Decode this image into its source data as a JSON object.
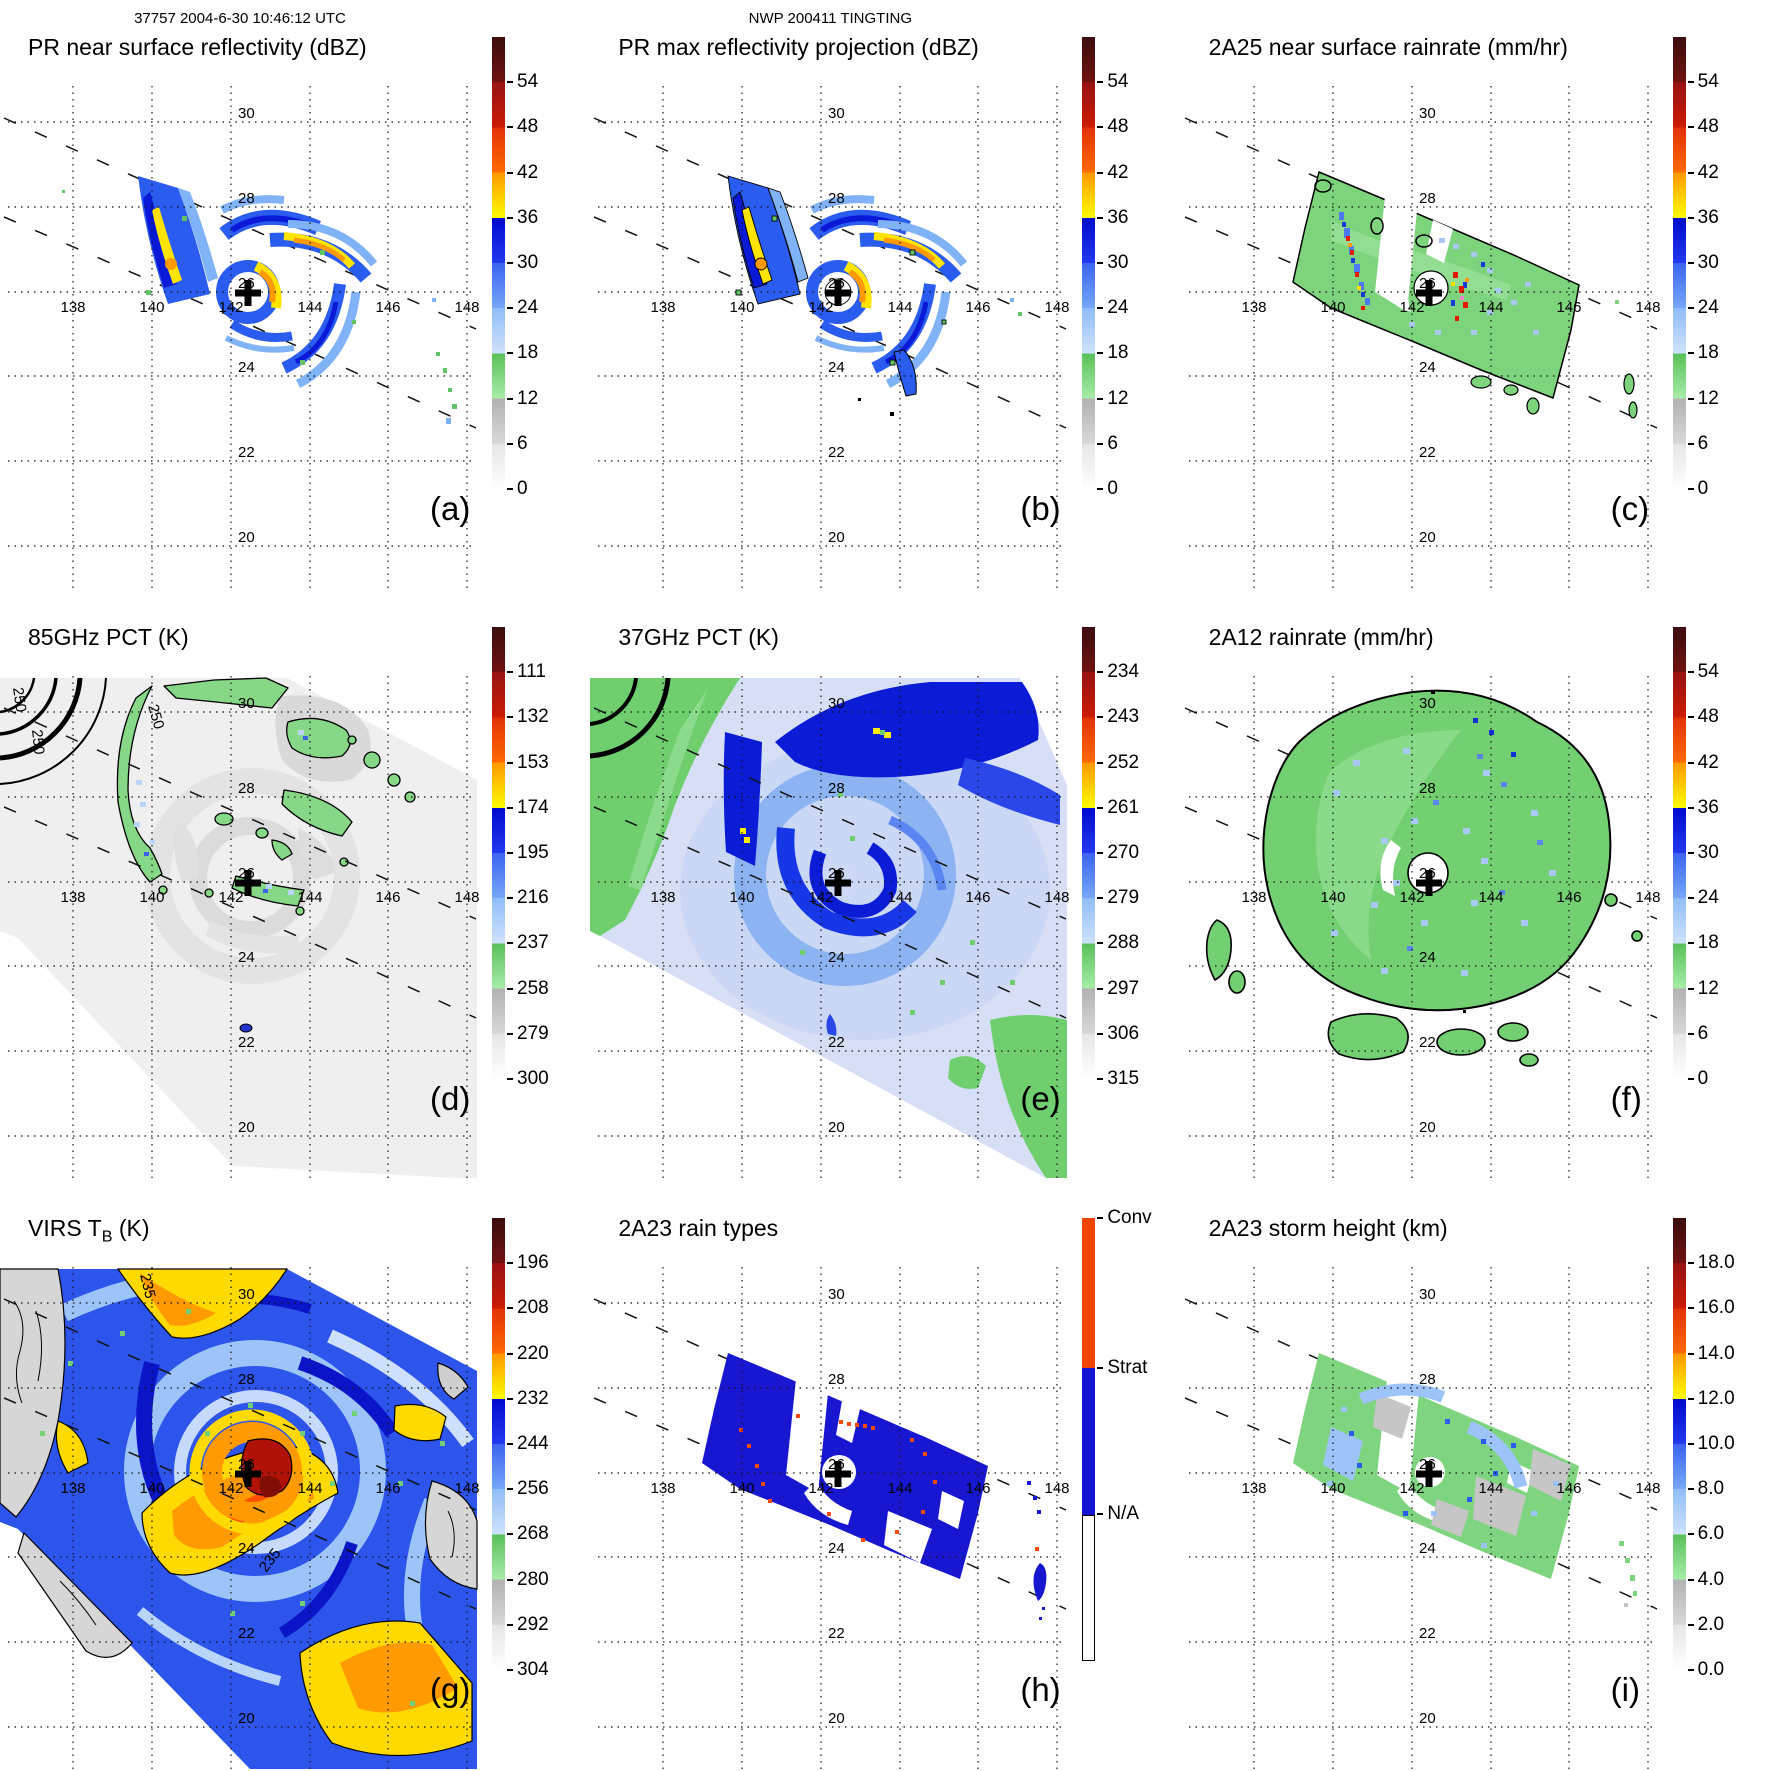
{
  "grid": {
    "lons": [
      "138",
      "140",
      "142",
      "144",
      "146",
      "148"
    ],
    "lats": [
      "30",
      "28",
      "26",
      "24",
      "22",
      "20"
    ]
  },
  "panels": [
    {
      "header": "37757 2004-6-30 10:46:12 UTC",
      "title": "PR near surface reflectivity (dBZ)",
      "letter": "(a)",
      "cbar_ticks": [
        "54",
        "48",
        "42",
        "36",
        "30",
        "24",
        "18",
        "12",
        "6",
        "0"
      ]
    },
    {
      "header": "NWP 200411 TINGTING",
      "title": "PR max reflectivity projection (dBZ)",
      "letter": "(b)",
      "cbar_ticks": [
        "54",
        "48",
        "42",
        "36",
        "30",
        "24",
        "18",
        "12",
        "6",
        "0"
      ]
    },
    {
      "title": "2A25 near surface rainrate (mm/hr)",
      "letter": "(c)",
      "cbar_ticks": [
        "54",
        "48",
        "42",
        "36",
        "30",
        "24",
        "18",
        "12",
        "6",
        "0"
      ]
    },
    {
      "title": "85GHz PCT (K)",
      "letter": "(d)",
      "cbar_ticks": [
        "111",
        "132",
        "153",
        "174",
        "195",
        "216",
        "237",
        "258",
        "279",
        "300"
      ],
      "contour_labels": [
        "250",
        "250",
        "250"
      ]
    },
    {
      "title": "37GHz PCT (K)",
      "letter": "(e)",
      "cbar_ticks": [
        "234",
        "243",
        "252",
        "261",
        "270",
        "279",
        "288",
        "297",
        "306",
        "315"
      ]
    },
    {
      "title": "2A12 rainrate (mm/hr)",
      "letter": "(f)",
      "cbar_ticks": [
        "54",
        "48",
        "42",
        "36",
        "30",
        "24",
        "18",
        "12",
        "6",
        "0"
      ]
    },
    {
      "title": "VIRS T",
      "title_sub": "B",
      "title_suffix": " (K)",
      "letter": "(g)",
      "cbar_ticks": [
        "196",
        "208",
        "220",
        "232",
        "244",
        "256",
        "268",
        "280",
        "292",
        "304"
      ],
      "contour_labels": [
        "235",
        "235"
      ]
    },
    {
      "title": "2A23 rain types",
      "letter": "(h)",
      "cbar_ticks": [
        "Conv",
        "Strat",
        "N/A"
      ]
    },
    {
      "title": "2A23 storm height (km)",
      "letter": "(i)",
      "cbar_ticks": [
        "18.0",
        "16.0",
        "14.0",
        "12.0",
        "10.0",
        "8.0",
        "6.0",
        "4.0",
        "2.0",
        "0.0"
      ]
    }
  ],
  "colors": {
    "colorbar_segments_top_to_bottom": [
      "#3c0d0d",
      "#981313",
      "#e23106",
      "#ff9800",
      "#fcfc00",
      "#0009cf",
      "#3c63f2",
      "#8fbdf9",
      "#59c059",
      "#b2b2b2",
      "#ffffff"
    ],
    "convective": "#f04408",
    "stratiform": "#1313d1",
    "not_available": "#ffffff"
  },
  "chart_data": [
    {
      "panel": "(a)",
      "type": "heatmap",
      "title": "PR near surface reflectivity (dBZ)",
      "units": "dBZ",
      "annotation": "37757 2004-6-30 10:46:12 UTC",
      "colorbar_ticks": [
        54,
        48,
        42,
        36,
        30,
        24,
        18,
        12,
        6,
        0
      ],
      "x_ticks_lon": [
        138,
        140,
        142,
        144,
        146,
        148
      ],
      "y_ticks_lat": [
        30,
        28,
        26,
        24,
        22,
        20
      ],
      "storm_center": {
        "lon": 142.5,
        "lat": 26.1
      },
      "swath": "narrow PR swath, spiral rainbands 18-48 dBZ around clear eye"
    },
    {
      "panel": "(b)",
      "type": "heatmap",
      "title": "PR max reflectivity projection (dBZ)",
      "units": "dBZ",
      "annotation": "NWP 200411 TINGTING",
      "colorbar_ticks": [
        54,
        48,
        42,
        36,
        30,
        24,
        18,
        12,
        6,
        0
      ],
      "x_ticks_lon": [
        138,
        140,
        142,
        144,
        146,
        148
      ],
      "y_ticks_lat": [
        30,
        28,
        26,
        24,
        22,
        20
      ],
      "storm_center": {
        "lon": 142.5,
        "lat": 26.1
      },
      "swath": "narrow PR swath with black contours, same bands as (a)"
    },
    {
      "panel": "(c)",
      "type": "heatmap",
      "title": "2A25 near surface rainrate (mm/hr)",
      "units": "mm/hr",
      "colorbar_ticks": [
        54,
        48,
        42,
        36,
        30,
        24,
        18,
        12,
        6,
        0
      ],
      "x_ticks_lon": [
        138,
        140,
        142,
        144,
        146,
        148
      ],
      "y_ticks_lat": [
        30,
        28,
        26,
        24,
        22,
        20
      ],
      "storm_center": {
        "lon": 142.5,
        "lat": 26.1
      },
      "swath": "narrow PR swath, mostly 6-12 mm/hr (green) with embedded 24-54 mm/hr cells"
    },
    {
      "panel": "(d)",
      "type": "heatmap",
      "title": "85GHz PCT (K)",
      "units": "K",
      "colorbar_ticks": [
        111,
        132,
        153,
        174,
        195,
        216,
        237,
        258,
        279,
        300
      ],
      "contour_labels": [
        250,
        250,
        250
      ],
      "x_ticks_lon": [
        138,
        140,
        142,
        144,
        146,
        148
      ],
      "y_ticks_lat": [
        30,
        28,
        26,
        24,
        22,
        20
      ],
      "storm_center": {
        "lon": 142.5,
        "lat": 26.1
      },
      "swath": "wide TMI swath, warm gray background ~280-300K, 237-258K (green) ice-scattering bands"
    },
    {
      "panel": "(e)",
      "type": "heatmap",
      "title": "37GHz PCT (K)",
      "units": "K",
      "colorbar_ticks": [
        234,
        243,
        252,
        261,
        270,
        279,
        288,
        297,
        306,
        315
      ],
      "x_ticks_lon": [
        138,
        140,
        142,
        144,
        146,
        148
      ],
      "y_ticks_lat": [
        30,
        28,
        26,
        24,
        22,
        20
      ],
      "storm_center": {
        "lon": 142.5,
        "lat": 26.1
      },
      "swath": "wide TMI swath, 261-279K blue spiral over ~280K pale field, ~290-300K green at swath edges"
    },
    {
      "panel": "(f)",
      "type": "heatmap",
      "title": "2A12 rainrate (mm/hr)",
      "units": "mm/hr",
      "colorbar_ticks": [
        54,
        48,
        42,
        36,
        30,
        24,
        18,
        12,
        6,
        0
      ],
      "x_ticks_lon": [
        138,
        140,
        142,
        144,
        146,
        148
      ],
      "y_ticks_lat": [
        30,
        28,
        26,
        24,
        22,
        20
      ],
      "storm_center": {
        "lon": 142.5,
        "lat": 26.1
      },
      "swath": "wide TMI swath, large 6 mm/hr (green) shield with 12-24 mm/hr (blue) cells and clear eye"
    },
    {
      "panel": "(g)",
      "type": "heatmap",
      "title": "VIRS TB (K)",
      "units": "K",
      "colorbar_ticks": [
        196,
        208,
        220,
        232,
        244,
        256,
        268,
        280,
        292,
        304
      ],
      "contour_labels": [
        235,
        235
      ],
      "x_ticks_lon": [
        138,
        140,
        142,
        144,
        146,
        148
      ],
      "y_ticks_lat": [
        30,
        28,
        26,
        24,
        22,
        20
      ],
      "storm_center": {
        "lon": 142.5,
        "lat": 26.1
      },
      "swath": "full VIRS swath, cold cloud tops 196-232K (red/orange/yellow) in eyewall and rainbands, 244-268K blue shield, ~290-304K gray clear air"
    },
    {
      "panel": "(h)",
      "type": "heatmap",
      "title": "2A23 rain types",
      "units": "category",
      "categories": [
        "Conv",
        "Strat",
        "N/A"
      ],
      "x_ticks_lon": [
        138,
        140,
        142,
        144,
        146,
        148
      ],
      "y_ticks_lat": [
        30,
        28,
        26,
        24,
        22,
        20
      ],
      "storm_center": {
        "lon": 142.5,
        "lat": 26.1
      },
      "swath": "narrow PR swath, mostly stratiform (blue) with scattered convective (orange) pixels"
    },
    {
      "panel": "(i)",
      "type": "heatmap",
      "title": "2A23 storm height (km)",
      "units": "km",
      "colorbar_ticks": [
        18.0,
        16.0,
        14.0,
        12.0,
        10.0,
        8.0,
        6.0,
        4.0,
        2.0,
        0.0
      ],
      "x_ticks_lon": [
        138,
        140,
        142,
        144,
        146,
        148
      ],
      "y_ticks_lat": [
        30,
        28,
        26,
        24,
        22,
        20
      ],
      "storm_center": {
        "lon": 142.5,
        "lat": 26.1
      },
      "swath": "narrow PR swath, storm heights mostly 6 km (green) with 8-12 km (blue) cells and 2-4 km (gray) patches"
    }
  ]
}
